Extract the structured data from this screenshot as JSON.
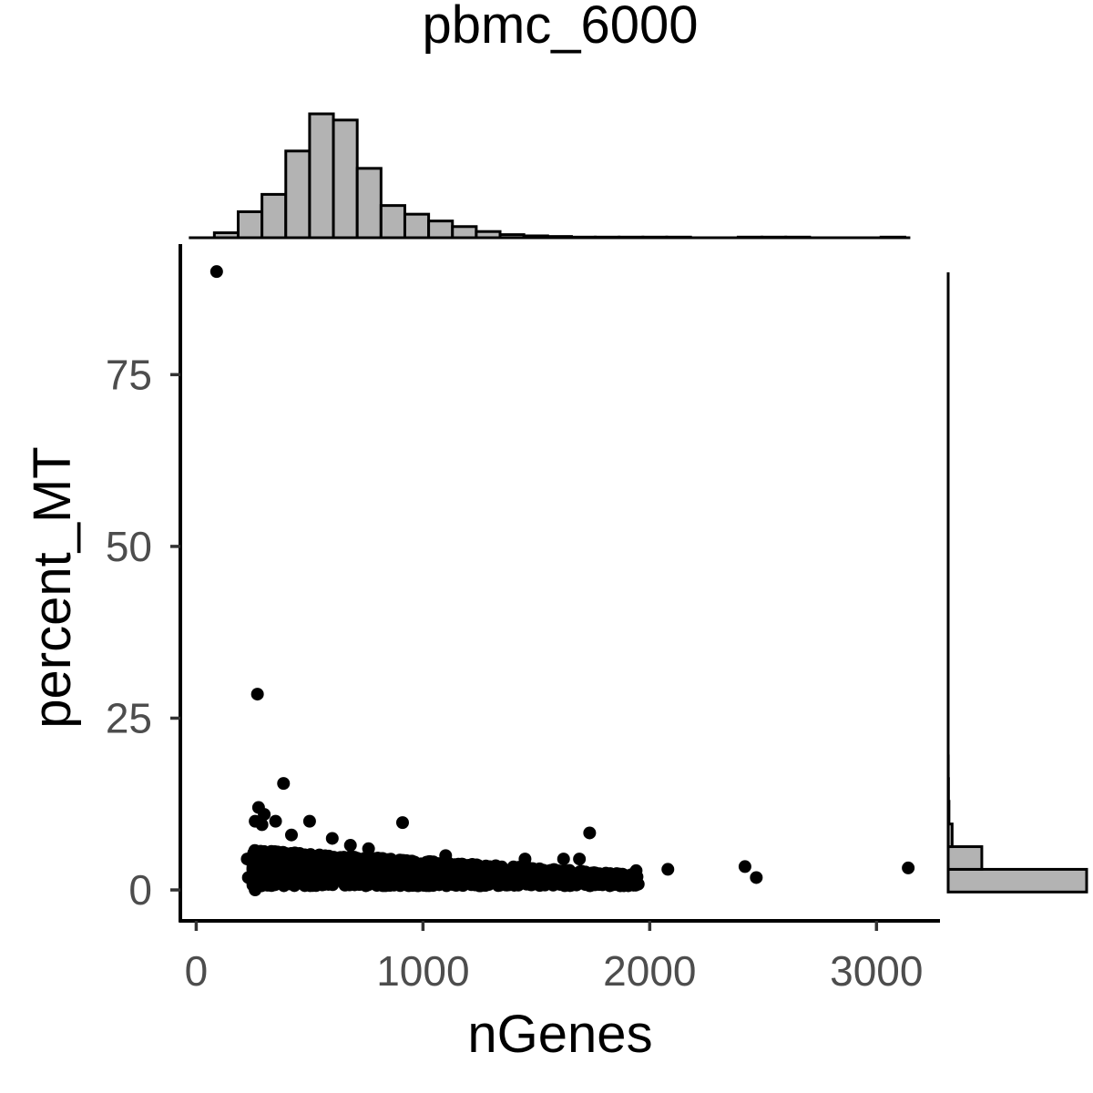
{
  "chart_data": {
    "type": "scatter",
    "title": "pbmc_6000",
    "xlabel": "nGenes",
    "ylabel": "percent_MT",
    "xlim": [
      -70,
      3280
    ],
    "ylim": [
      -4.5,
      94
    ],
    "x_ticks": [
      0,
      1000,
      2000,
      3000
    ],
    "x_tick_labels": [
      "0",
      "1000",
      "2000",
      "3000"
    ],
    "y_ticks": [
      0,
      25,
      50,
      75
    ],
    "y_tick_labels": [
      "0",
      "25",
      "50",
      "75"
    ],
    "grid": false,
    "legend": "none",
    "point_color": "#000000",
    "histogram_fill": "#b3b3b3",
    "histogram_stroke": "#000000",
    "marginal_x_histogram": {
      "bin_edges": [
        80,
        185,
        290,
        395,
        500,
        605,
        710,
        815,
        920,
        1025,
        1130,
        1235,
        1340,
        1445,
        1550,
        1655,
        1760,
        1865,
        1970,
        2075,
        2180,
        2285,
        2390,
        2495,
        2600,
        2705,
        2810,
        2915,
        3020,
        3125
      ],
      "counts": [
        8,
        42,
        70,
        140,
        200,
        190,
        112,
        52,
        38,
        27,
        18,
        10,
        5,
        3,
        2,
        1,
        1,
        1,
        1,
        1,
        0,
        0,
        1,
        1,
        1,
        0,
        0,
        0,
        1
      ]
    },
    "marginal_y_histogram": {
      "bin_edges": [
        -0.3,
        3.0,
        6.3,
        9.6,
        12.9,
        16.2,
        19.5
      ],
      "counts": [
        1400,
        340,
        40,
        8,
        3,
        1
      ]
    },
    "points": [
      {
        "x": 90,
        "y": 90
      },
      {
        "x": 270,
        "y": 28.5
      },
      {
        "x": 385,
        "y": 15.5
      },
      {
        "x": 275,
        "y": 12
      },
      {
        "x": 300,
        "y": 11
      },
      {
        "x": 260,
        "y": 10
      },
      {
        "x": 290,
        "y": 9.5
      },
      {
        "x": 350,
        "y": 10
      },
      {
        "x": 500,
        "y": 10
      },
      {
        "x": 910,
        "y": 9.8
      },
      {
        "x": 1735,
        "y": 8.3
      },
      {
        "x": 2080,
        "y": 3
      },
      {
        "x": 2420,
        "y": 3.4
      },
      {
        "x": 2470,
        "y": 1.8
      },
      {
        "x": 3140,
        "y": 3.2
      },
      {
        "x": 1940,
        "y": 1.5
      },
      {
        "x": 1880,
        "y": 2.3
      },
      {
        "x": 1940,
        "y": 2.8
      },
      {
        "x": 1690,
        "y": 4.5
      },
      {
        "x": 1620,
        "y": 4.5
      },
      {
        "x": 1580,
        "y": 2
      },
      {
        "x": 1450,
        "y": 4.5
      },
      {
        "x": 1100,
        "y": 5
      },
      {
        "x": 225,
        "y": 4.5
      },
      {
        "x": 230,
        "y": 1.8
      },
      {
        "x": 260,
        "y": 0
      },
      {
        "x": 420,
        "y": 8
      },
      {
        "x": 600,
        "y": 7.5
      },
      {
        "x": 680,
        "y": 6.5
      },
      {
        "x": 760,
        "y": 6
      }
    ],
    "dense_cluster": {
      "x_range": [
        250,
        1950
      ],
      "y_range": [
        0.5,
        6
      ],
      "approx_points": 1800
    }
  }
}
